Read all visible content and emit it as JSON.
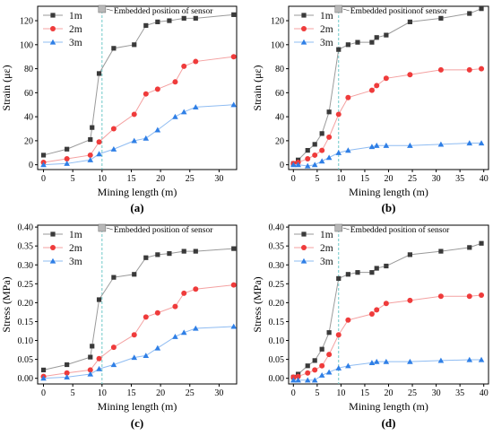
{
  "colors": {
    "1m": "#3a3a3a",
    "2m": "#ef3b3b",
    "3m": "#2f7fe6",
    "sensor_line": "#6fc9c9",
    "sensor_marker": "#b8b8b8",
    "line_1m": "#9a9a9a",
    "line_2m": "#f4a1a1",
    "line_3m": "#8fbcf2"
  },
  "chart_data": [
    {
      "type": "line",
      "panel": "(a)",
      "xlabel": "Mining length (m)",
      "ylabel": "Strain (με)",
      "xlim": [
        -1,
        33
      ],
      "ylim": [
        -4,
        132
      ],
      "xticks": [
        0,
        5,
        10,
        15,
        20,
        25,
        30
      ],
      "yticks": [
        0,
        20,
        40,
        60,
        80,
        100,
        120
      ],
      "ytick_labels": [
        "0",
        "20",
        "40",
        "60",
        "80",
        "100",
        "120"
      ],
      "grid": false,
      "legend": "top-left",
      "sensor_x": 10,
      "sensor_label": "Embedded position of sensor",
      "series": [
        {
          "name": "1m",
          "marker": "square",
          "x": [
            0,
            4,
            8,
            8.3,
            9.5,
            12,
            15.5,
            17.5,
            19.5,
            21.5,
            24,
            26,
            32.5
          ],
          "y": [
            8,
            13,
            21,
            31,
            76,
            97,
            100,
            116,
            119,
            120,
            122,
            122,
            125
          ]
        },
        {
          "name": "2m",
          "marker": "circle",
          "x": [
            0,
            4,
            8,
            9.5,
            12,
            15.5,
            17.5,
            19.5,
            22.5,
            24,
            26,
            32.5
          ],
          "y": [
            2,
            5,
            8,
            19,
            30,
            42,
            59,
            63,
            69,
            82,
            86,
            90
          ]
        },
        {
          "name": "3m",
          "marker": "triangle",
          "x": [
            0,
            4,
            8,
            9.5,
            12,
            15.5,
            17.5,
            19.5,
            22.5,
            24,
            26,
            32.5
          ],
          "y": [
            0,
            1,
            4,
            9,
            13,
            20,
            22,
            29,
            40,
            44,
            48,
            50
          ]
        }
      ]
    },
    {
      "type": "line",
      "panel": "(b)",
      "xlabel": "Mining length (m)",
      "ylabel": "Strain (με)",
      "xlim": [
        -1,
        41
      ],
      "ylim": [
        -4,
        132
      ],
      "xticks": [
        0,
        5,
        10,
        15,
        20,
        25,
        30,
        35,
        40
      ],
      "yticks": [
        0,
        20,
        40,
        60,
        80,
        100,
        120
      ],
      "ytick_labels": [
        "0",
        "20",
        "40",
        "60",
        "80",
        "100",
        "120"
      ],
      "grid": false,
      "legend": "top-left",
      "sensor_x": 9.5,
      "sensor_label": "Embedded positionof sensor",
      "series": [
        {
          "name": "1m",
          "marker": "square",
          "x": [
            0,
            1,
            3,
            4.5,
            6,
            7.5,
            9.5,
            11.5,
            13.5,
            16.5,
            17.5,
            19.5,
            24.5,
            31,
            37,
            39.5
          ],
          "y": [
            1,
            4,
            12,
            17,
            26,
            44,
            96,
            100,
            102,
            102,
            106,
            108,
            119,
            122,
            126,
            130
          ]
        },
        {
          "name": "2m",
          "marker": "circle",
          "x": [
            0,
            1,
            3,
            4.5,
            6,
            7.5,
            9.5,
            11.5,
            16.5,
            17.5,
            19.5,
            24.5,
            31,
            37,
            39.5
          ],
          "y": [
            1,
            2,
            5,
            8,
            12,
            23,
            42,
            56,
            62,
            66,
            72,
            75,
            79,
            79,
            80
          ]
        },
        {
          "name": "3m",
          "marker": "triangle",
          "x": [
            0,
            1,
            3,
            4.5,
            6,
            7.5,
            9.5,
            11.5,
            16.5,
            17.5,
            19.5,
            24.5,
            31,
            37,
            39.5
          ],
          "y": [
            0,
            0,
            -1,
            0,
            3,
            6,
            10,
            12,
            15,
            16,
            16,
            16,
            17,
            18,
            18
          ]
        }
      ]
    },
    {
      "type": "line",
      "panel": "(c)",
      "xlabel": "Mining length (m)",
      "ylabel": "Stress (MPa)",
      "xlim": [
        -1,
        33
      ],
      "ylim": [
        -0.015,
        0.405
      ],
      "xticks": [
        0,
        5,
        10,
        15,
        20,
        25,
        30
      ],
      "yticks": [
        0,
        0.05,
        0.1,
        0.15,
        0.2,
        0.25,
        0.3,
        0.35,
        0.4
      ],
      "ytick_labels": [
        "0.00",
        "0.05",
        "0.10",
        "0.15",
        "0.20",
        "0.25",
        "0.30",
        "0.35",
        "0.40"
      ],
      "grid": false,
      "legend": "top-left",
      "sensor_x": 10,
      "sensor_label": "Embedded position of sensor",
      "series": [
        {
          "name": "1m",
          "marker": "square",
          "x": [
            0,
            4,
            8,
            8.3,
            9.5,
            12,
            15.5,
            17.5,
            19.5,
            21.5,
            24,
            26,
            32.5
          ],
          "y": [
            0.022,
            0.036,
            0.056,
            0.085,
            0.208,
            0.267,
            0.275,
            0.319,
            0.327,
            0.33,
            0.336,
            0.336,
            0.343
          ]
        },
        {
          "name": "2m",
          "marker": "circle",
          "x": [
            0,
            4,
            8,
            9.5,
            12,
            15.5,
            17.5,
            19.5,
            22.5,
            24,
            26,
            32.5
          ],
          "y": [
            0.005,
            0.014,
            0.022,
            0.052,
            0.082,
            0.115,
            0.162,
            0.173,
            0.19,
            0.225,
            0.236,
            0.247
          ]
        },
        {
          "name": "3m",
          "marker": "triangle",
          "x": [
            0,
            4,
            8,
            9.5,
            12,
            15.5,
            17.5,
            19.5,
            22.5,
            24,
            26,
            32.5
          ],
          "y": [
            0,
            0.003,
            0.011,
            0.025,
            0.036,
            0.055,
            0.06,
            0.08,
            0.11,
            0.121,
            0.132,
            0.137
          ]
        }
      ]
    },
    {
      "type": "line",
      "panel": "(d)",
      "xlabel": "Mining length (m)",
      "ylabel": "Stress (MPa)",
      "xlim": [
        -1,
        41
      ],
      "ylim": [
        -0.015,
        0.405
      ],
      "xticks": [
        0,
        5,
        10,
        15,
        20,
        25,
        30,
        35,
        40
      ],
      "yticks": [
        0,
        0.05,
        0.1,
        0.15,
        0.2,
        0.25,
        0.3,
        0.35,
        0.4
      ],
      "ytick_labels": [
        "0.00",
        "0.05",
        "0.10",
        "0.15",
        "0.20",
        "0.25",
        "0.30",
        "0.35",
        "0.40"
      ],
      "grid": false,
      "legend": "top-left",
      "sensor_x": 9.5,
      "sensor_label": "Embedded position of sensor",
      "series": [
        {
          "name": "1m",
          "marker": "square",
          "x": [
            0,
            1,
            3,
            4.5,
            6,
            7.5,
            9.5,
            11.5,
            13.5,
            16.5,
            17.5,
            19.5,
            24.5,
            31,
            37,
            39.5
          ],
          "y": [
            0.003,
            0.011,
            0.033,
            0.047,
            0.077,
            0.121,
            0.264,
            0.275,
            0.28,
            0.28,
            0.291,
            0.297,
            0.327,
            0.336,
            0.346,
            0.357
          ]
        },
        {
          "name": "2m",
          "marker": "circle",
          "x": [
            0,
            1,
            3,
            4.5,
            6,
            7.5,
            9.5,
            11.5,
            16.5,
            17.5,
            19.5,
            24.5,
            31,
            37,
            39.5
          ],
          "y": [
            0.003,
            0.005,
            0.014,
            0.022,
            0.033,
            0.063,
            0.115,
            0.154,
            0.17,
            0.181,
            0.198,
            0.206,
            0.217,
            0.217,
            0.22
          ]
        },
        {
          "name": "3m",
          "marker": "triangle",
          "x": [
            0,
            1,
            3,
            4.5,
            6,
            7.5,
            9.5,
            11.5,
            16.5,
            17.5,
            19.5,
            24.5,
            31,
            37,
            39.5
          ],
          "y": [
            -0.005,
            -0.005,
            -0.005,
            -0.005,
            0.008,
            0.016,
            0.027,
            0.033,
            0.041,
            0.044,
            0.044,
            0.044,
            0.047,
            0.049,
            0.049
          ]
        }
      ]
    }
  ]
}
